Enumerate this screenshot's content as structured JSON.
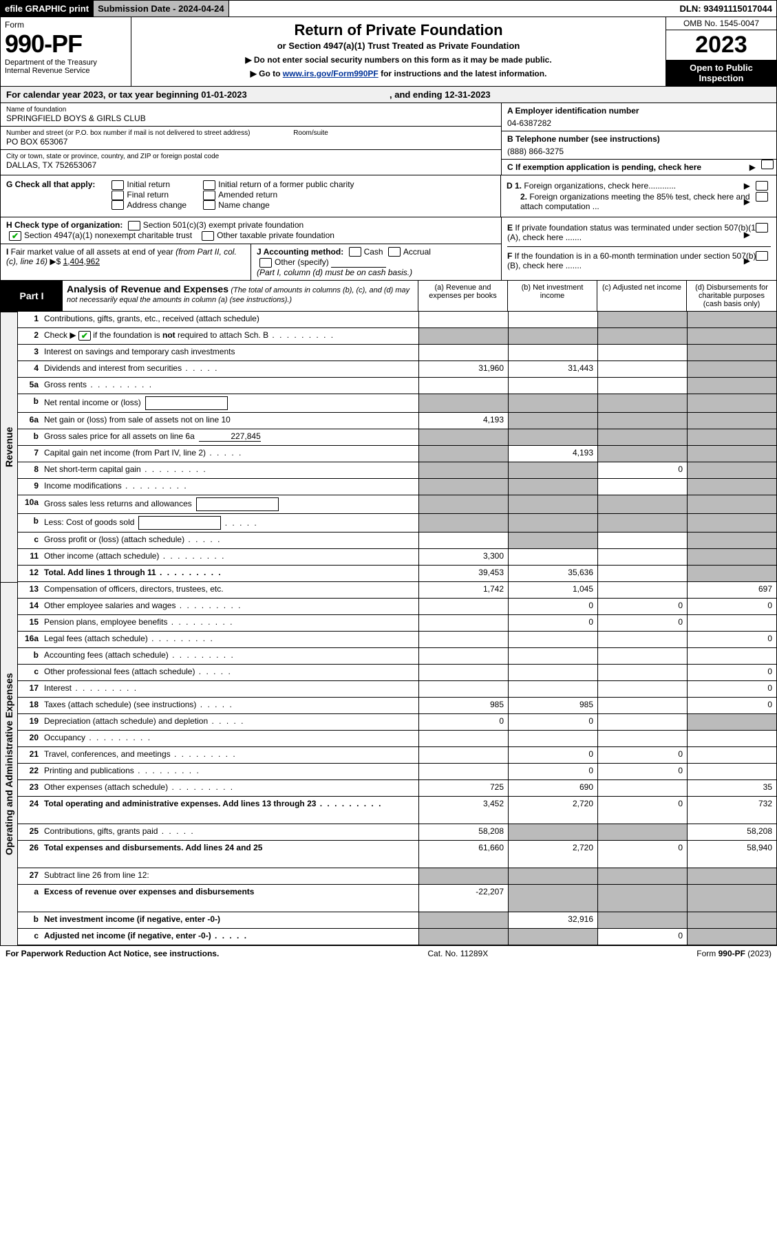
{
  "topbar": {
    "efile": "efile GRAPHIC print",
    "sub_lbl": "Submission Date - 2024-04-24",
    "dln": "DLN: 93491115017044"
  },
  "header": {
    "form": "Form",
    "num": "990-PF",
    "dept": "Department of the Treasury\nInternal Revenue Service",
    "title": "Return of Private Foundation",
    "subtitle": "or Section 4947(a)(1) Trust Treated as Private Foundation",
    "note1": "▶ Do not enter social security numbers on this form as it may be made public.",
    "note2_pre": "▶ Go to ",
    "note2_link": "www.irs.gov/Form990PF",
    "note2_post": " for instructions and the latest information.",
    "omb": "OMB No. 1545-0047",
    "year": "2023",
    "open": "Open to Public Inspection"
  },
  "cal": {
    "text_pre": "For calendar year 2023, or tax year beginning ",
    "begin": "01-01-2023",
    "mid": " , and ending ",
    "end": "12-31-2023"
  },
  "id": {
    "name_lbl": "Name of foundation",
    "name": "SPRINGFIELD BOYS & GIRLS CLUB",
    "addr_lbl": "Number and street (or P.O. box number if mail is not delivered to street address)",
    "room_lbl": "Room/suite",
    "addr": "PO BOX 653067",
    "city_lbl": "City or town, state or province, country, and ZIP or foreign postal code",
    "city": "DALLAS, TX  752653067",
    "a_lbl": "A Employer identification number",
    "a_val": "04-6387282",
    "b_lbl": "B Telephone number (see instructions)",
    "b_val": "(888) 866-3275",
    "c_lbl": "C If exemption application is pending, check here",
    "d1": "D 1. Foreign organizations, check here............",
    "d2": "2. Foreign organizations meeting the 85% test, check here and attach computation ...",
    "e": "E If private foundation status was terminated under section 507(b)(1)(A), check here .......",
    "f": "F If the foundation is in a 60-month termination under section 507(b)(1)(B), check here ......."
  },
  "g": {
    "lbl": "G Check all that apply:",
    "o1": "Initial return",
    "o2": "Final return",
    "o3": "Address change",
    "o4": "Initial return of a former public charity",
    "o5": "Amended return",
    "o6": "Name change"
  },
  "h": {
    "lbl": "H Check type of organization:",
    "o1": "Section 501(c)(3) exempt private foundation",
    "o2": "Section 4947(a)(1) nonexempt charitable trust",
    "o3": "Other taxable private foundation"
  },
  "i": {
    "lbl": "I Fair market value of all assets at end of year (from Part II, col. (c), line 16) ▶$",
    "val": "1,404,962"
  },
  "j": {
    "lbl": "J Accounting method:",
    "cash": "Cash",
    "acc": "Accrual",
    "oth": "Other (specify)",
    "note": "(Part I, column (d) must be on cash basis.)"
  },
  "part1": {
    "label": "Part I",
    "title": "Analysis of Revenue and Expenses",
    "sub": "(The total of amounts in columns (b), (c), and (d) may not necessarily equal the amounts in column (a) (see instructions).)",
    "ca": "(a) Revenue and expenses per books",
    "cb": "(b) Net investment income",
    "cc": "(c) Adjusted net income",
    "cd": "(d) Disbursements for charitable purposes (cash basis only)"
  },
  "sides": {
    "rev": "Revenue",
    "exp": "Operating and Administrative Expenses"
  },
  "revRows": [
    {
      "ln": "1",
      "d": "Contributions, gifts, grants, etc., received (attach schedule)",
      "a": "",
      "b": "",
      "c": "g",
      "dd": "g"
    },
    {
      "ln": "2",
      "d": "Check ▶ ✔ if the foundation is not required to attach Sch. B",
      "dot": true,
      "a": "g",
      "b": "g",
      "c": "g",
      "dd": "g",
      "chk": true
    },
    {
      "ln": "3",
      "d": "Interest on savings and temporary cash investments",
      "a": "",
      "b": "",
      "c": "",
      "dd": "g"
    },
    {
      "ln": "4",
      "d": "Dividends and interest from securities",
      "dot": "s",
      "a": "31,960",
      "b": "31,443",
      "c": "",
      "dd": "g"
    },
    {
      "ln": "5a",
      "d": "Gross rents",
      "dot": true,
      "a": "",
      "b": "",
      "c": "",
      "dd": "g"
    },
    {
      "ln": "b",
      "d": "Net rental income or (loss)",
      "box": true,
      "a": "g",
      "b": "g",
      "c": "g",
      "dd": "g"
    },
    {
      "ln": "6a",
      "d": "Net gain or (loss) from sale of assets not on line 10",
      "a": "4,193",
      "b": "g",
      "c": "g",
      "dd": "g"
    },
    {
      "ln": "b",
      "d": "Gross sales price for all assets on line 6a",
      "u": "227,845",
      "a": "g",
      "b": "g",
      "c": "g",
      "dd": "g"
    },
    {
      "ln": "7",
      "d": "Capital gain net income (from Part IV, line 2)",
      "dot": "s",
      "a": "g",
      "b": "4,193",
      "c": "g",
      "dd": "g"
    },
    {
      "ln": "8",
      "d": "Net short-term capital gain",
      "dot": true,
      "a": "g",
      "b": "g",
      "c": "0",
      "dd": "g"
    },
    {
      "ln": "9",
      "d": "Income modifications",
      "dot": true,
      "a": "g",
      "b": "g",
      "c": "",
      "dd": "g"
    },
    {
      "ln": "10a",
      "d": "Gross sales less returns and allowances",
      "box": true,
      "a": "g",
      "b": "g",
      "c": "g",
      "dd": "g"
    },
    {
      "ln": "b",
      "d": "Less: Cost of goods sold",
      "dot": "s",
      "box": true,
      "a": "g",
      "b": "g",
      "c": "g",
      "dd": "g"
    },
    {
      "ln": "c",
      "d": "Gross profit or (loss) (attach schedule)",
      "dot": "s",
      "a": "",
      "b": "g",
      "c": "",
      "dd": "g"
    },
    {
      "ln": "11",
      "d": "Other income (attach schedule)",
      "dot": true,
      "a": "3,300",
      "b": "",
      "c": "",
      "dd": "g"
    },
    {
      "ln": "12",
      "d": "Total. Add lines 1 through 11",
      "dot": true,
      "bold": true,
      "a": "39,453",
      "b": "35,636",
      "c": "",
      "dd": "g"
    }
  ],
  "expRows": [
    {
      "ln": "13",
      "d": "Compensation of officers, directors, trustees, etc.",
      "a": "1,742",
      "b": "1,045",
      "c": "",
      "dd": "697"
    },
    {
      "ln": "14",
      "d": "Other employee salaries and wages",
      "dot": true,
      "a": "",
      "b": "0",
      "c": "0",
      "dd": "0"
    },
    {
      "ln": "15",
      "d": "Pension plans, employee benefits",
      "dot": true,
      "a": "",
      "b": "0",
      "c": "0",
      "dd": ""
    },
    {
      "ln": "16a",
      "d": "Legal fees (attach schedule)",
      "dot": true,
      "a": "",
      "b": "",
      "c": "",
      "dd": "0"
    },
    {
      "ln": "b",
      "d": "Accounting fees (attach schedule)",
      "dot": true,
      "a": "",
      "b": "",
      "c": "",
      "dd": ""
    },
    {
      "ln": "c",
      "d": "Other professional fees (attach schedule)",
      "dot": "s",
      "a": "",
      "b": "",
      "c": "",
      "dd": "0"
    },
    {
      "ln": "17",
      "d": "Interest",
      "dot": true,
      "a": "",
      "b": "",
      "c": "",
      "dd": "0"
    },
    {
      "ln": "18",
      "d": "Taxes (attach schedule) (see instructions)",
      "dot": "s",
      "a": "985",
      "b": "985",
      "c": "",
      "dd": "0"
    },
    {
      "ln": "19",
      "d": "Depreciation (attach schedule) and depletion",
      "dot": "s",
      "a": "0",
      "b": "0",
      "c": "",
      "dd": "g"
    },
    {
      "ln": "20",
      "d": "Occupancy",
      "dot": true,
      "a": "",
      "b": "",
      "c": "",
      "dd": ""
    },
    {
      "ln": "21",
      "d": "Travel, conferences, and meetings",
      "dot": true,
      "a": "",
      "b": "0",
      "c": "0",
      "dd": ""
    },
    {
      "ln": "22",
      "d": "Printing and publications",
      "dot": true,
      "a": "",
      "b": "0",
      "c": "0",
      "dd": ""
    },
    {
      "ln": "23",
      "d": "Other expenses (attach schedule)",
      "dot": true,
      "a": "725",
      "b": "690",
      "c": "",
      "dd": "35"
    },
    {
      "ln": "24",
      "d": "Total operating and administrative expenses. Add lines 13 through 23",
      "dot": true,
      "bold": true,
      "multi": true,
      "a": "3,452",
      "b": "2,720",
      "c": "0",
      "dd": "732"
    },
    {
      "ln": "25",
      "d": "Contributions, gifts, grants paid",
      "dot": "s",
      "a": "58,208",
      "b": "g",
      "c": "g",
      "dd": "58,208"
    },
    {
      "ln": "26",
      "d": "Total expenses and disbursements. Add lines 24 and 25",
      "bold": true,
      "multi": true,
      "a": "61,660",
      "b": "2,720",
      "c": "0",
      "dd": "58,940"
    },
    {
      "ln": "27",
      "d": "Subtract line 26 from line 12:",
      "a": "g",
      "b": "g",
      "c": "g",
      "dd": "g"
    },
    {
      "ln": "a",
      "d": "Excess of revenue over expenses and disbursements",
      "bold": true,
      "multi": true,
      "a": "-22,207",
      "b": "g",
      "c": "g",
      "dd": "g"
    },
    {
      "ln": "b",
      "d": "Net investment income (if negative, enter -0-)",
      "bold": true,
      "a": "g",
      "b": "32,916",
      "c": "g",
      "dd": "g"
    },
    {
      "ln": "c",
      "d": "Adjusted net income (if negative, enter -0-)",
      "dot": "s",
      "bold": true,
      "a": "g",
      "b": "g",
      "c": "0",
      "dd": "g"
    }
  ],
  "footer": {
    "left": "For Paperwork Reduction Act Notice, see instructions.",
    "mid": "Cat. No. 11289X",
    "right": "Form 990-PF (2023)"
  },
  "colors": {
    "gray": "#bbbbbb",
    "black": "#000000",
    "link": "#003399",
    "green": "#00aa00"
  }
}
